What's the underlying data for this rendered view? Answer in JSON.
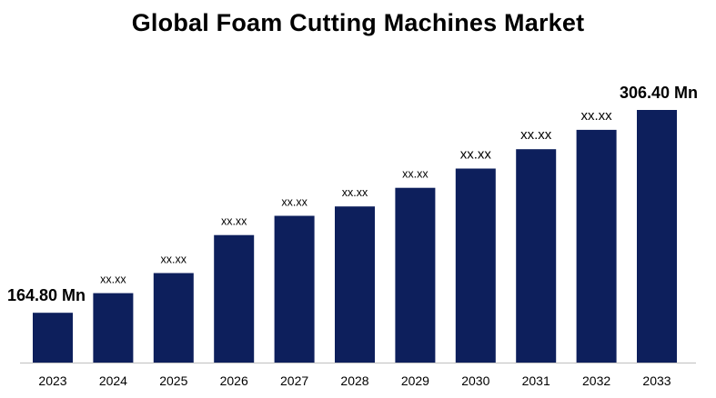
{
  "chart_data": {
    "type": "bar",
    "title": "Global Foam Cutting Machines Market",
    "xlabel": "",
    "ylabel": "",
    "categories": [
      "2023",
      "2024",
      "2025",
      "2026",
      "2027",
      "2028",
      "2029",
      "2030",
      "2031",
      "2032",
      "2033"
    ],
    "values": [
      164.8,
      178.5,
      192.5,
      219.0,
      232.5,
      239.0,
      252.0,
      265.5,
      279.0,
      292.5,
      306.4
    ],
    "data_labels": [
      "164.80 Mn",
      "xx.xx",
      "xx.xx",
      "xx.xx",
      "xx.xx",
      "xx.xx",
      "xx.xx",
      "xx.xx",
      "xx.xx",
      "xx.xx",
      "306.40 Mn"
    ],
    "bar_color": "#0d1f5c",
    "ylim": [
      130,
      320
    ],
    "grid": false,
    "legend": "none"
  }
}
